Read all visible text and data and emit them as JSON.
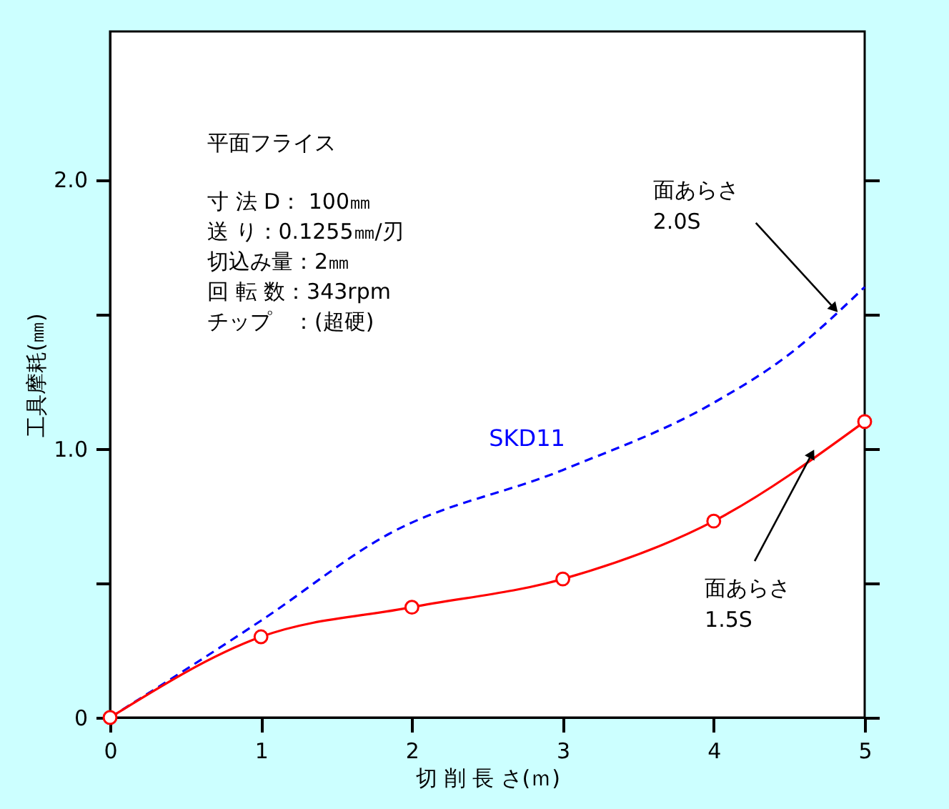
{
  "chart_data": {
    "type": "line",
    "xlabel": "切 削 長 さ(ｍ)",
    "ylabel": "工具摩耗(㎜)",
    "xlim": [
      0,
      5
    ],
    "xticks": [
      0,
      1,
      2,
      3,
      4,
      5
    ],
    "ylim": [
      0,
      2.55
    ],
    "yticks": [
      0,
      {
        "value": 0.5,
        "label": null
      },
      {
        "value": 1.0,
        "label": "1.0"
      },
      {
        "value": 1.5,
        "label": null
      },
      {
        "value": 2.0,
        "label": "2.0"
      }
    ],
    "grid": false,
    "series": [
      {
        "name": "SKD11",
        "color": "#0000ff",
        "line_style": "dashed",
        "marker": "none",
        "x": [
          0,
          1,
          1.84,
          3,
          4,
          4.5,
          5
        ],
        "values": [
          0,
          0.36,
          0.68,
          0.92,
          1.17,
          1.35,
          1.6
        ]
      },
      {
        "color": "#ff0000",
        "line_style": "solid",
        "marker": "circle",
        "x": [
          0,
          1,
          2,
          3,
          4,
          5
        ],
        "values": [
          0,
          0.3,
          0.41,
          0.515,
          0.73,
          1.1
        ]
      }
    ],
    "annotations": [
      "平面フライス",
      "寸 法 D：  100㎜",
      "送    り：0.1255㎜/刃",
      "切込み量：2㎜",
      "回 転 数：343rpm",
      "チップ　：(超硬)",
      {
        "text": "面あらさ\n2.0S",
        "x": 4.8,
        "y": 1.52
      },
      {
        "text": "面あらさ\n1.5S",
        "x": 4.65,
        "y": 0.98
      }
    ]
  }
}
